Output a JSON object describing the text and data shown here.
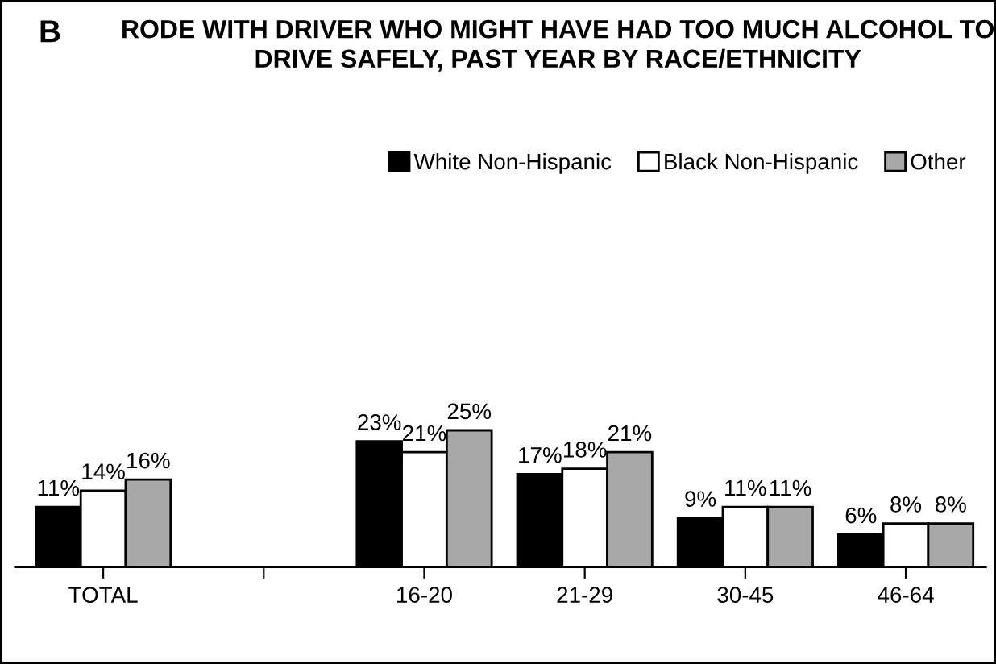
{
  "chart_data": {
    "type": "bar",
    "title": "RODE WITH DRIVER WHO MIGHT HAVE HAD TOO MUCH ALCOHOL TO DRIVE SAFELY, PAST YEAR BY RACE/ETHNICITY",
    "annotations": [
      "B"
    ],
    "categories": [
      "TOTAL",
      null,
      "16-20",
      "21-29",
      "30-45",
      "46-64"
    ],
    "series": [
      {
        "name": "White Non-Hispanic",
        "color": "#000000",
        "values": [
          11,
          null,
          23,
          17,
          9,
          6
        ],
        "value_labels": [
          "11%",
          null,
          "23%",
          "17%",
          "9%",
          "6%"
        ]
      },
      {
        "name": "Black Non-Hispanic",
        "color": "#ffffff",
        "values": [
          14,
          null,
          21,
          18,
          11,
          8
        ],
        "value_labels": [
          "14%",
          null,
          "21%",
          "18%",
          "11%",
          "8%"
        ]
      },
      {
        "name": "Other",
        "color": "#a8a8a8",
        "values": [
          16,
          null,
          25,
          21,
          11,
          8
        ],
        "value_labels": [
          "16%",
          null,
          "25%",
          "21%",
          "11%",
          "8%"
        ]
      }
    ],
    "tick_labels": "x",
    "legend": "top right",
    "grid": false
  }
}
